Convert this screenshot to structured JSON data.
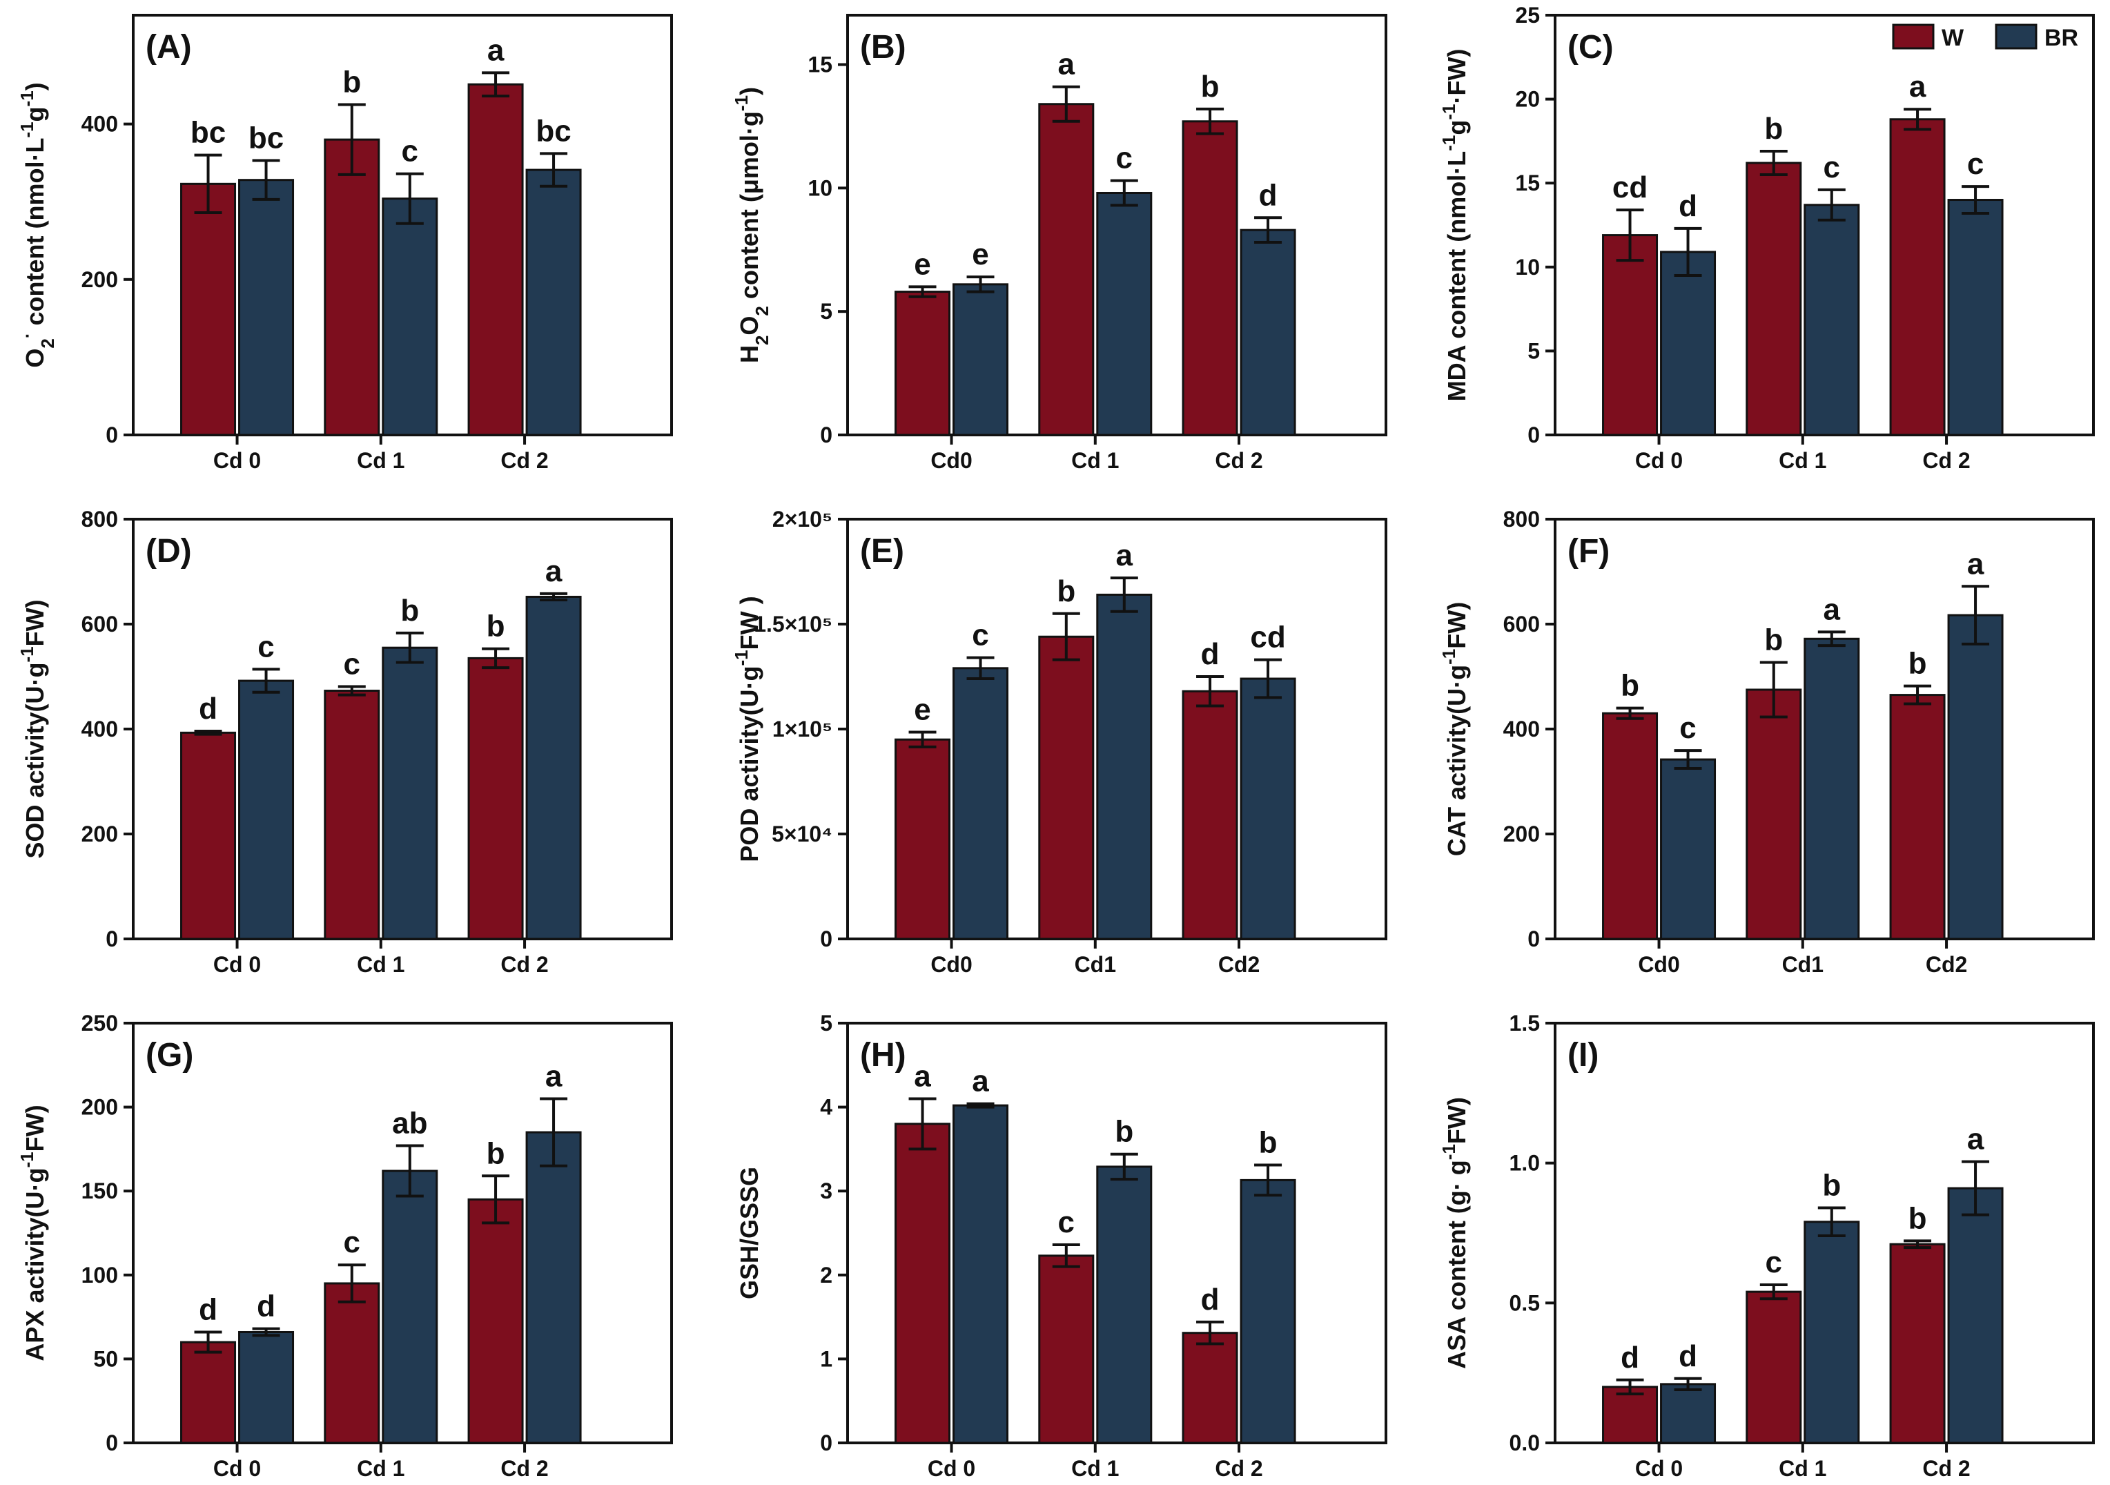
{
  "colors": {
    "W": "#7d0e1e",
    "BR": "#223a52",
    "axis": "#111111"
  },
  "legend": [
    {
      "key": "W",
      "label": "W"
    },
    {
      "key": "BR",
      "label": "BR"
    }
  ],
  "chart_data": [
    {
      "type": "bar",
      "panel": "(A)",
      "ylabel": {
        "parts": [
          [
            "O",
            ""
          ],
          [
            "2",
            "sub"
          ],
          [
            "·",
            "sup"
          ],
          [
            " content (nmol·L",
            ""
          ],
          [
            "-1",
            "sup"
          ],
          [
            "g",
            ""
          ],
          [
            "-1",
            "sup"
          ],
          [
            ")",
            ""
          ]
        ]
      },
      "categories": [
        "Cd 0",
        "Cd 1",
        "Cd 2"
      ],
      "ylim": [
        0,
        540
      ],
      "yticks": [
        0,
        200,
        400
      ],
      "ytick_labels": [
        "0",
        "200",
        "400"
      ],
      "series": [
        {
          "name": "W",
          "values": [
            323,
            380,
            451
          ],
          "errors": [
            37,
            45,
            15
          ],
          "letters": [
            "bc",
            "b",
            "a"
          ]
        },
        {
          "name": "BR",
          "values": [
            328,
            304,
            341
          ],
          "errors": [
            25,
            32,
            21
          ],
          "letters": [
            "bc",
            "c",
            "bc"
          ]
        }
      ]
    },
    {
      "type": "bar",
      "panel": "(B)",
      "ylabel": {
        "parts": [
          [
            "H",
            ""
          ],
          [
            "2",
            "sub"
          ],
          [
            "O",
            ""
          ],
          [
            "2",
            "sub"
          ],
          [
            " content (μmol·g",
            ""
          ],
          [
            "-1",
            "sup"
          ],
          [
            ")",
            ""
          ]
        ]
      },
      "categories": [
        "Cd0",
        "Cd 1",
        "Cd 2"
      ],
      "ylim": [
        0,
        17
      ],
      "yticks": [
        0,
        5,
        10,
        15
      ],
      "ytick_labels": [
        "0",
        "5",
        "10",
        "15"
      ],
      "series": [
        {
          "name": "W",
          "values": [
            5.8,
            13.4,
            12.7
          ],
          "errors": [
            0.2,
            0.7,
            0.5
          ],
          "letters": [
            "e",
            "a",
            "b"
          ]
        },
        {
          "name": "BR",
          "values": [
            6.1,
            9.8,
            8.3
          ],
          "errors": [
            0.3,
            0.5,
            0.5
          ],
          "letters": [
            "e",
            "c",
            "d"
          ]
        }
      ]
    },
    {
      "type": "bar",
      "panel": "(C)",
      "ylabel": {
        "parts": [
          [
            "MDA content (nmol·L",
            ""
          ],
          [
            "-1",
            "sup"
          ],
          [
            "g",
            ""
          ],
          [
            "-1",
            "sup"
          ],
          [
            "·FW)",
            ""
          ]
        ]
      },
      "categories": [
        "Cd 0",
        "Cd 1",
        "Cd 2"
      ],
      "ylim": [
        0,
        25
      ],
      "yticks": [
        0,
        5,
        10,
        15,
        20,
        25
      ],
      "ytick_labels": [
        "0",
        "5",
        "10",
        "15",
        "20",
        "25"
      ],
      "series": [
        {
          "name": "W",
          "values": [
            11.9,
            16.2,
            18.8
          ],
          "errors": [
            1.5,
            0.7,
            0.6
          ],
          "letters": [
            "cd",
            "b",
            "a"
          ]
        },
        {
          "name": "BR",
          "values": [
            10.9,
            13.7,
            14.0
          ],
          "errors": [
            1.4,
            0.9,
            0.8
          ],
          "letters": [
            "d",
            "c",
            "c"
          ]
        }
      ]
    },
    {
      "type": "bar",
      "panel": "(D)",
      "ylabel": {
        "parts": [
          [
            "SOD activity(U·g",
            ""
          ],
          [
            "-1",
            "sup"
          ],
          [
            "FW)",
            ""
          ]
        ]
      },
      "categories": [
        "Cd 0",
        "Cd 1",
        "Cd 2"
      ],
      "ylim": [
        0,
        800
      ],
      "yticks": [
        0,
        200,
        400,
        600,
        800
      ],
      "ytick_labels": [
        "0",
        "200",
        "400",
        "600",
        "800"
      ],
      "series": [
        {
          "name": "W",
          "values": [
            393,
            473,
            535
          ],
          "errors": [
            3,
            8,
            18
          ],
          "letters": [
            "d",
            "c",
            "b"
          ]
        },
        {
          "name": "BR",
          "values": [
            492,
            555,
            652
          ],
          "errors": [
            22,
            28,
            6
          ],
          "letters": [
            "c",
            "b",
            "a"
          ]
        }
      ]
    },
    {
      "type": "bar",
      "panel": "(E)",
      "ylabel": {
        "parts": [
          [
            "POD activity(U·g",
            ""
          ],
          [
            "-1",
            "sup"
          ],
          [
            "FW )",
            ""
          ]
        ]
      },
      "categories": [
        "Cd0",
        "Cd1",
        "Cd2"
      ],
      "ylim": [
        0,
        200000
      ],
      "yticks": [
        0,
        50000,
        100000,
        150000,
        200000
      ],
      "ytick_labels": [
        "0",
        "5×10⁴",
        "1×10⁵",
        "1.5×10⁵",
        "2×10⁵"
      ],
      "series": [
        {
          "name": "W",
          "values": [
            95000,
            144000,
            118000
          ],
          "errors": [
            3500,
            11000,
            7000
          ],
          "letters": [
            "e",
            "b",
            "d"
          ]
        },
        {
          "name": "BR",
          "values": [
            129000,
            164000,
            124000
          ],
          "errors": [
            5000,
            8000,
            9000
          ],
          "letters": [
            "c",
            "a",
            "cd"
          ]
        }
      ]
    },
    {
      "type": "bar",
      "panel": "(F)",
      "ylabel": {
        "parts": [
          [
            "CAT activity(U·g",
            ""
          ],
          [
            "-1",
            "sup"
          ],
          [
            "FW)",
            ""
          ]
        ]
      },
      "categories": [
        "Cd0",
        "Cd1",
        "Cd2"
      ],
      "ylim": [
        0,
        800
      ],
      "yticks": [
        0,
        200,
        400,
        600,
        800
      ],
      "ytick_labels": [
        "0",
        "200",
        "400",
        "600",
        "800"
      ],
      "series": [
        {
          "name": "W",
          "values": [
            430,
            475,
            465
          ],
          "errors": [
            10,
            52,
            17
          ],
          "letters": [
            "b",
            "b",
            "b"
          ]
        },
        {
          "name": "BR",
          "values": [
            342,
            572,
            617
          ],
          "errors": [
            17,
            13,
            55
          ],
          "letters": [
            "c",
            "a",
            "a"
          ]
        }
      ]
    },
    {
      "type": "bar",
      "panel": "(G)",
      "ylabel": {
        "parts": [
          [
            "APX activity(U·g",
            ""
          ],
          [
            "-1",
            "sup"
          ],
          [
            "FW)",
            ""
          ]
        ]
      },
      "categories": [
        "Cd 0",
        "Cd 1",
        "Cd 2"
      ],
      "ylim": [
        0,
        250
      ],
      "yticks": [
        0,
        50,
        100,
        150,
        200,
        250
      ],
      "ytick_labels": [
        "0",
        "50",
        "100",
        "150",
        "200",
        "250"
      ],
      "series": [
        {
          "name": "W",
          "values": [
            60,
            95,
            145
          ],
          "errors": [
            6,
            11,
            14
          ],
          "letters": [
            "d",
            "c",
            "b"
          ]
        },
        {
          "name": "BR",
          "values": [
            66,
            162,
            185
          ],
          "errors": [
            2,
            15,
            20
          ],
          "letters": [
            "d",
            "ab",
            "a"
          ]
        }
      ]
    },
    {
      "type": "bar",
      "panel": "(H)",
      "ylabel": {
        "parts": [
          [
            "GSH/GSSG",
            ""
          ]
        ]
      },
      "categories": [
        "Cd 0",
        "Cd 1",
        "Cd 2"
      ],
      "ylim": [
        0,
        5
      ],
      "yticks": [
        0,
        1,
        2,
        3,
        4,
        5
      ],
      "ytick_labels": [
        "0",
        "1",
        "2",
        "3",
        "4",
        "5"
      ],
      "series": [
        {
          "name": "W",
          "values": [
            3.8,
            2.23,
            1.31
          ],
          "errors": [
            0.3,
            0.13,
            0.13
          ],
          "letters": [
            "a",
            "c",
            "d"
          ]
        },
        {
          "name": "BR",
          "values": [
            4.02,
            3.29,
            3.13
          ],
          "errors": [
            0.02,
            0.15,
            0.18
          ],
          "letters": [
            "a",
            "b",
            "b"
          ]
        }
      ]
    },
    {
      "type": "bar",
      "panel": "(I)",
      "ylabel": {
        "parts": [
          [
            "ASA content (g· g",
            ""
          ],
          [
            "-1",
            "sup"
          ],
          [
            "FW)",
            ""
          ]
        ]
      },
      "categories": [
        "Cd 0",
        "Cd 1",
        "Cd 2"
      ],
      "ylim": [
        0,
        1.5
      ],
      "yticks": [
        0,
        0.5,
        1.0,
        1.5
      ],
      "ytick_labels": [
        "0.0",
        "0.5",
        "1.0",
        "1.5"
      ],
      "series": [
        {
          "name": "W",
          "values": [
            0.2,
            0.54,
            0.71
          ],
          "errors": [
            0.025,
            0.025,
            0.012
          ],
          "letters": [
            "d",
            "c",
            "b"
          ]
        },
        {
          "name": "BR",
          "values": [
            0.21,
            0.79,
            0.91
          ],
          "errors": [
            0.02,
            0.05,
            0.095
          ],
          "letters": [
            "d",
            "b",
            "a"
          ]
        }
      ]
    }
  ]
}
